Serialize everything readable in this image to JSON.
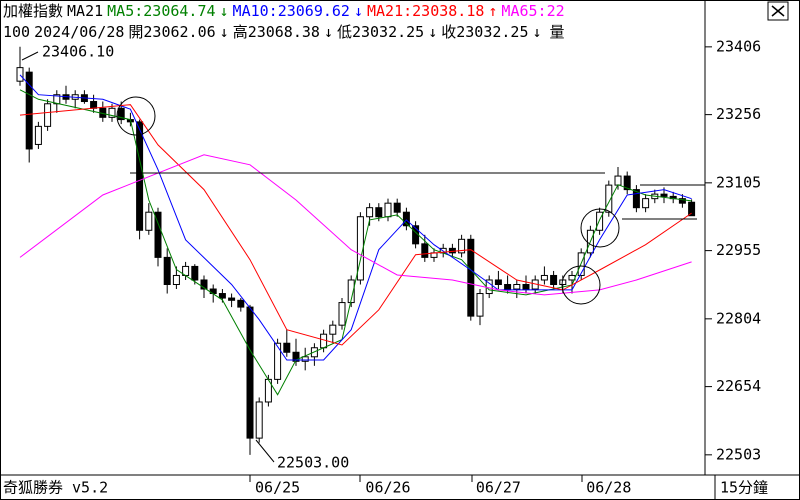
{
  "header": {
    "title": "加權指數",
    "ma_label": "MA21",
    "legend": [
      {
        "text": "MA5:23064.74",
        "arrow": "↓",
        "color": "#008000"
      },
      {
        "text": "MA10:23069.62",
        "arrow": "↓",
        "color": "#0000ff"
      },
      {
        "text": "MA21:23038.18",
        "arrow": "↑",
        "color": "#ff0000"
      },
      {
        "text": "MA65:22",
        "arrow": null,
        "color": "#ff00ff"
      }
    ]
  },
  "info": {
    "id": "100",
    "date": "2024/06/28",
    "items": [
      {
        "text": "開23062.06",
        "arrow": "↓"
      },
      {
        "text": "高23068.38",
        "arrow": "↓"
      },
      {
        "text": "低23032.25",
        "arrow": "↓"
      },
      {
        "text": "收23032.25",
        "arrow": "↓"
      }
    ],
    "tail": "量"
  },
  "footer": {
    "app": "奇狐勝券 v5.2",
    "period": "15分鐘"
  },
  "chart_data": {
    "type": "candlestick",
    "categories": [
      null,
      null,
      null,
      null,
      null,
      null,
      null,
      null,
      null,
      null,
      null,
      null,
      null,
      null,
      null,
      null,
      null,
      null,
      null,
      null,
      null,
      null,
      null,
      null,
      null,
      null,
      null,
      null,
      "06/25",
      null,
      null,
      null,
      null,
      null,
      null,
      null,
      null,
      null,
      null,
      null,
      "06/26",
      null,
      null,
      null,
      null,
      null,
      null,
      null,
      null,
      null,
      null,
      null,
      "06/27",
      null,
      null,
      null,
      null,
      null,
      null,
      null,
      null,
      null,
      null,
      null,
      "06/28",
      null,
      null,
      null,
      null,
      null,
      null,
      null,
      null,
      null
    ],
    "open": [
      23330,
      23350,
      23190,
      23230,
      23280,
      23300,
      23290,
      23300,
      23285,
      23270,
      23250,
      23270,
      23245,
      23240,
      23000,
      23040,
      22940,
      22880,
      22900,
      22920,
      22890,
      22870,
      22860,
      22850,
      22845,
      22830,
      22540,
      22620,
      22670,
      22750,
      22730,
      22710,
      22720,
      22740,
      22770,
      22790,
      22840,
      22890,
      23030,
      23050,
      23030,
      23060,
      23040,
      23010,
      22970,
      22940,
      22950,
      22960,
      22950,
      22980,
      22810,
      22860,
      22890,
      22880,
      22870,
      22880,
      22870,
      22890,
      22900,
      22880,
      22890,
      22900,
      22950,
      23000,
      23040,
      23100,
      23120,
      23090,
      23050,
      23070,
      23080,
      23075,
      23070,
      23062.06
    ],
    "high": [
      23406.1,
      23360,
      23240,
      23290,
      23310,
      23320,
      23310,
      23310,
      23300,
      23285,
      23280,
      23285,
      23260,
      23245,
      23060,
      23050,
      22960,
      22920,
      22930,
      22925,
      22900,
      22880,
      22870,
      22860,
      22850,
      22835,
      22630,
      22680,
      22760,
      22780,
      22760,
      22740,
      22750,
      22780,
      22800,
      22850,
      22900,
      23040,
      23060,
      23060,
      23070,
      23070,
      23050,
      23020,
      22990,
      22960,
      22970,
      22970,
      22990,
      22990,
      22870,
      22900,
      22910,
      22900,
      22890,
      22900,
      22900,
      22920,
      22910,
      22900,
      22910,
      22960,
      23010,
      23050,
      23110,
      23140,
      23130,
      23100,
      23080,
      23090,
      23095,
      23085,
      23080,
      23068.38
    ],
    "low": [
      23320,
      23150,
      23180,
      23220,
      23260,
      23280,
      23270,
      23280,
      23260,
      23240,
      23240,
      23235,
      23230,
      22980,
      22990,
      22920,
      22860,
      22870,
      22890,
      22880,
      22850,
      22840,
      22840,
      22830,
      22820,
      22503,
      22530,
      22610,
      22660,
      22720,
      22700,
      22690,
      22700,
      22730,
      22750,
      22780,
      22830,
      22880,
      23010,
      23020,
      23020,
      23030,
      23000,
      22960,
      22930,
      22930,
      22940,
      22940,
      22940,
      22800,
      22790,
      22850,
      22870,
      22860,
      22850,
      22860,
      22860,
      22880,
      22870,
      22860,
      22860,
      22890,
      22940,
      22990,
      23030,
      23090,
      23080,
      23040,
      23040,
      23060,
      23060,
      23060,
      23050,
      23032.25
    ],
    "close": [
      23360,
      23180,
      23230,
      23280,
      23300,
      23290,
      23300,
      23285,
      23270,
      23250,
      23270,
      23245,
      23240,
      23000,
      23040,
      22940,
      22880,
      22900,
      22920,
      22890,
      22870,
      22860,
      22850,
      22845,
      22830,
      22540,
      22620,
      22670,
      22750,
      22730,
      22710,
      22720,
      22740,
      22770,
      22790,
      22840,
      22890,
      23030,
      23050,
      23030,
      23060,
      23040,
      23010,
      22970,
      22940,
      22950,
      22960,
      22950,
      22980,
      22810,
      22860,
      22890,
      22880,
      22870,
      22880,
      22870,
      22890,
      22900,
      22880,
      22890,
      22900,
      22950,
      23000,
      23040,
      23100,
      23120,
      23090,
      23050,
      23070,
      23080,
      23075,
      23070,
      23060,
      23032.25
    ],
    "up_color": "#ffffff",
    "down_color": "#000000",
    "series": [
      {
        "name": "MA5",
        "color": "#008000",
        "x": [
          0,
          2,
          12,
          14,
          17,
          22,
          25,
          28,
          30,
          35,
          38,
          41,
          45,
          48,
          51,
          55,
          60,
          63,
          65,
          68,
          73
        ],
        "values": [
          23311,
          23290,
          23245,
          23067,
          22913,
          22846,
          22735,
          22636,
          22713,
          22758,
          23023,
          23034,
          22957,
          22935,
          22868,
          22857,
          22879,
          23023,
          23101,
          23078,
          23065
        ]
      },
      {
        "name": "MA10",
        "color": "#0000ff",
        "x": [
          0,
          2,
          9,
          12,
          15,
          18,
          23,
          26,
          29,
          33,
          36,
          39,
          42,
          45,
          49,
          52,
          57,
          60,
          63,
          66,
          70,
          73
        ],
        "values": [
          23344,
          23300,
          23290,
          23268,
          23134,
          22979,
          22880,
          22802,
          22713,
          22713,
          22780,
          22957,
          23023,
          22968,
          22912,
          22868,
          22868,
          22868,
          22979,
          23078,
          23090,
          23070
        ]
      },
      {
        "name": "MA21",
        "color": "#ff0000",
        "x": [
          0,
          12,
          15,
          20,
          25,
          29,
          35,
          39,
          43,
          49,
          54,
          59,
          63,
          68,
          73
        ],
        "values": [
          23255,
          23278,
          23189,
          23090,
          22935,
          22780,
          22746,
          22824,
          22946,
          22957,
          22890,
          22868,
          22912,
          22968,
          23038
        ]
      },
      {
        "name": "MA65",
        "color": "#ff00ff",
        "x": [
          0,
          9,
          20,
          25,
          30,
          36,
          41,
          47,
          52,
          57,
          63,
          67,
          73
        ],
        "values": [
          22940,
          23078,
          23167,
          23145,
          23067,
          22957,
          22901,
          22890,
          22868,
          22857,
          22868,
          22890,
          22930
        ]
      }
    ],
    "ylim": [
      22465,
      23461
    ],
    "yticks": [
      23406,
      23256,
      23105,
      22955,
      22804,
      22654,
      22503
    ],
    "annotations": [
      "23406.10",
      "22503.00"
    ]
  }
}
